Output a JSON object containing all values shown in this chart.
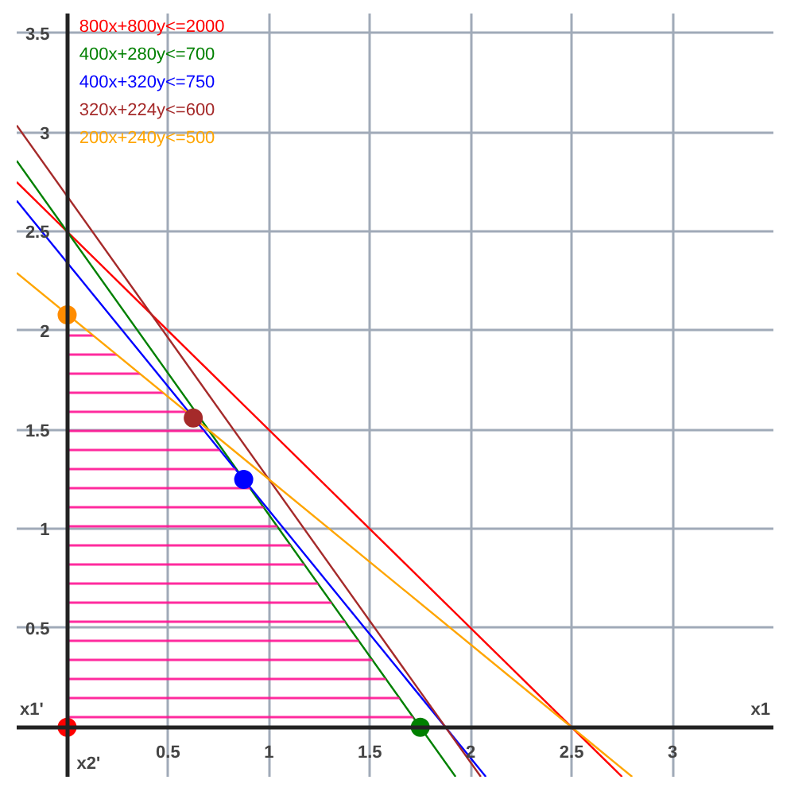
{
  "chart_data": {
    "type": "line",
    "xlabel": "x1",
    "ylabel": "x2'",
    "annotations": [
      "x1'"
    ],
    "xlim": [
      -0.25,
      3.5
    ],
    "ylim": [
      -0.25,
      3.6
    ],
    "xticks": [
      0.5,
      1,
      1.5,
      2,
      2.5,
      3
    ],
    "yticks": [
      0.5,
      1,
      1.5,
      2,
      2.5,
      3,
      3.5
    ],
    "grid": true,
    "legend": false,
    "marker": "none",
    "line_style": "solid",
    "series": [
      {
        "name": "800x+800y<=2000",
        "color": "#ff0000",
        "x": [
          -0.25,
          2.75
        ],
        "values": [
          2.75,
          -0.25
        ]
      },
      {
        "name": "400x+280y<=700",
        "color": "#008000",
        "x": [
          -0.25,
          1.925
        ],
        "values": [
          2.857,
          -0.25
        ]
      },
      {
        "name": "400x+320y<=750",
        "color": "#0000ff",
        "x": [
          -0.25,
          2.075
        ],
        "values": [
          2.656,
          -0.25
        ]
      },
      {
        "name": "320x+224y<=600",
        "color": "#a52a2a",
        "x": [
          -0.25,
          2.05
        ],
        "values": [
          3.036,
          -0.25
        ]
      },
      {
        "name": "200x+240y<=500",
        "color": "#ffa500",
        "x": [
          -0.25,
          2.8
        ],
        "values": [
          2.292,
          -0.25
        ]
      },
      {
        "type": "area",
        "color": "#ff1493",
        "x": [
          0,
          0.625,
          0.875,
          1.75
        ],
        "values": [
          2.08,
          1.56,
          1.25,
          0
        ]
      },
      {
        "type": "scatter",
        "marker": "circle",
        "colors": [
          "#ff0000",
          "#008000",
          "#0000ff",
          "#a52a2a",
          "#ff8c00"
        ],
        "x": [
          0,
          1.75,
          0.875,
          0.625,
          0
        ],
        "values": [
          0,
          0,
          1.25,
          1.56,
          2.08
        ]
      }
    ]
  }
}
